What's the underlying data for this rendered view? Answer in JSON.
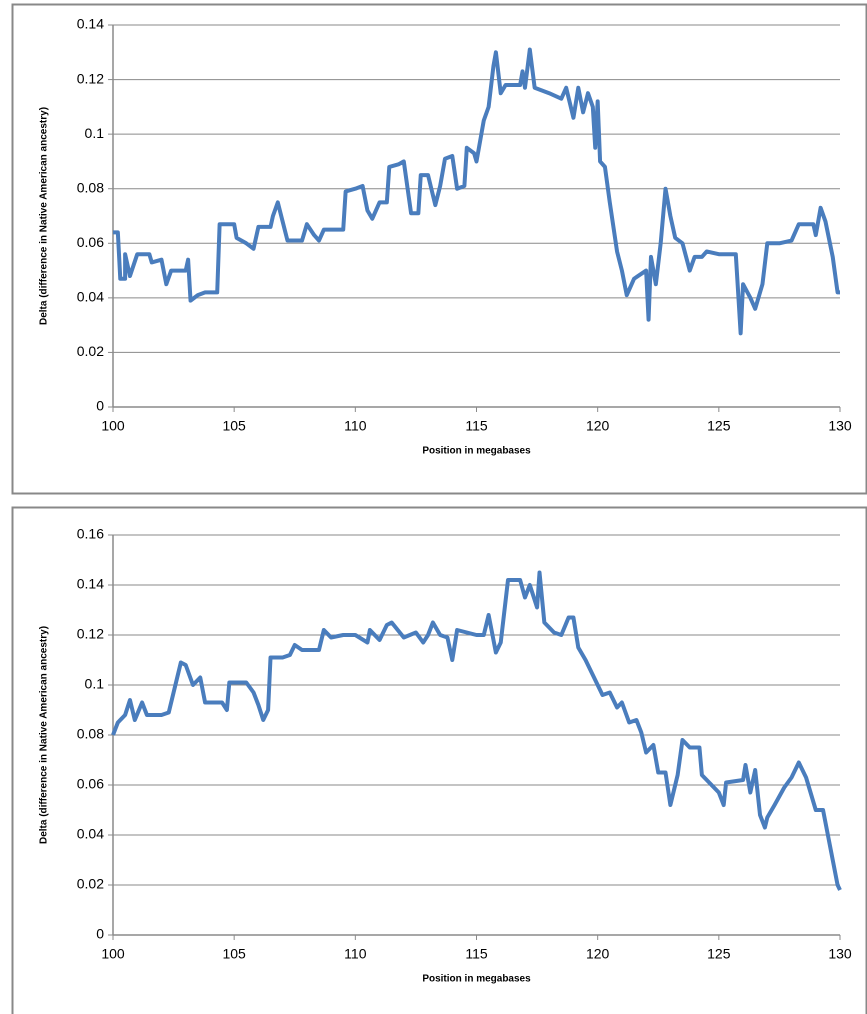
{
  "chart_data": [
    {
      "type": "line",
      "x_label": "Position in megabases",
      "y_label": "Delta (difference in Native American ancestry)",
      "xlim": [
        100,
        130
      ],
      "xticks": [
        100,
        105,
        110,
        115,
        120,
        125,
        130
      ],
      "ylim": [
        0,
        0.14
      ],
      "yticks": [
        0,
        0.02,
        0.04,
        0.06,
        0.08,
        0.1,
        0.12,
        0.14
      ],
      "grid": true,
      "x": [
        100,
        100.2,
        100.3,
        100.5,
        100.5,
        100.7,
        101,
        101.5,
        101.6,
        102,
        102.2,
        102.4,
        103,
        103.1,
        103.2,
        103.5,
        103.8,
        104.3,
        104.4,
        105,
        105.1,
        105.5,
        105.8,
        106,
        106.5,
        106.6,
        106.8,
        107,
        107.2,
        107.8,
        108,
        108.3,
        108.5,
        108.7,
        109.5,
        109.6,
        110,
        110.3,
        110.5,
        110.7,
        111,
        111.3,
        111.4,
        111.8,
        112,
        112.3,
        112.6,
        112.7,
        113,
        113.3,
        113.5,
        113.7,
        114,
        114.2,
        114.5,
        114.6,
        114.9,
        115,
        115.3,
        115.5,
        115.7,
        115.8,
        116,
        116.2,
        116.8,
        116.9,
        117,
        117.2,
        117.4,
        118,
        118.5,
        118.7,
        119,
        119.2,
        119.4,
        119.6,
        119.8,
        119.9,
        120,
        120.1,
        120.3,
        120.5,
        120.8,
        121,
        121.2,
        121.5,
        122,
        122.1,
        122.2,
        122.4,
        122.6,
        122.8,
        123,
        123.2,
        123.5,
        123.8,
        124,
        124.3,
        124.5,
        125,
        125.7,
        125.9,
        126,
        126.3,
        126.5,
        126.8,
        127,
        127.5,
        128,
        128.3,
        128.9,
        129,
        129.2,
        129.4,
        129.7,
        129.9,
        130
      ],
      "series": [
        {
          "color": "#4a7dbd",
          "values": [
            0.064,
            0.064,
            0.047,
            0.047,
            0.056,
            0.048,
            0.056,
            0.056,
            0.053,
            0.054,
            0.045,
            0.05,
            0.05,
            0.054,
            0.039,
            0.041,
            0.042,
            0.042,
            0.067,
            0.067,
            0.062,
            0.06,
            0.058,
            0.066,
            0.066,
            0.07,
            0.075,
            0.068,
            0.061,
            0.061,
            0.067,
            0.063,
            0.061,
            0.065,
            0.065,
            0.079,
            0.08,
            0.081,
            0.072,
            0.069,
            0.075,
            0.075,
            0.088,
            0.089,
            0.09,
            0.071,
            0.071,
            0.085,
            0.085,
            0.074,
            0.081,
            0.091,
            0.092,
            0.08,
            0.081,
            0.095,
            0.093,
            0.09,
            0.105,
            0.11,
            0.125,
            0.13,
            0.115,
            0.118,
            0.118,
            0.123,
            0.117,
            0.131,
            0.117,
            0.115,
            0.113,
            0.117,
            0.106,
            0.117,
            0.108,
            0.115,
            0.11,
            0.095,
            0.112,
            0.09,
            0.088,
            0.075,
            0.057,
            0.05,
            0.041,
            0.047,
            0.05,
            0.032,
            0.055,
            0.045,
            0.06,
            0.08,
            0.07,
            0.062,
            0.06,
            0.05,
            0.055,
            0.055,
            0.057,
            0.056,
            0.056,
            0.027,
            0.045,
            0.04,
            0.036,
            0.045,
            0.06,
            0.06,
            0.061,
            0.067,
            0.067,
            0.063,
            0.073,
            0.068,
            0.055,
            0.042,
            0.042
          ]
        }
      ]
    },
    {
      "type": "line",
      "x_label": "Position in megabases",
      "y_label": "Delta (difference in Native American ancestry)",
      "xlim": [
        100,
        130
      ],
      "xticks": [
        100,
        105,
        110,
        115,
        120,
        125,
        130
      ],
      "ylim": [
        0,
        0.16
      ],
      "yticks": [
        0,
        0.02,
        0.04,
        0.06,
        0.08,
        0.1,
        0.12,
        0.14,
        0.16
      ],
      "grid": true,
      "x": [
        100,
        100.2,
        100.5,
        100.7,
        100.9,
        101.2,
        101.4,
        102,
        102.3,
        102.5,
        102.8,
        103,
        103.3,
        103.6,
        103.8,
        104.5,
        104.7,
        104.8,
        105.5,
        105.8,
        106,
        106.2,
        106.4,
        106.5,
        107,
        107.3,
        107.5,
        107.8,
        108.5,
        108.7,
        109,
        109.5,
        110,
        110.5,
        110.6,
        111,
        111.3,
        111.5,
        112,
        112.5,
        112.8,
        113,
        113.2,
        113.5,
        113.8,
        114,
        114.2,
        114.6,
        115,
        115.3,
        115.5,
        115.8,
        116,
        116.3,
        116.8,
        117,
        117.2,
        117.5,
        117.6,
        117.8,
        118.2,
        118.5,
        118.8,
        119,
        119.2,
        119.5,
        119.8,
        120,
        120.2,
        120.5,
        120.8,
        121,
        121.3,
        121.6,
        121.8,
        122,
        122.3,
        122.5,
        122.8,
        123,
        123.3,
        123.5,
        123.8,
        124.2,
        124.3,
        124.7,
        125,
        125.2,
        125.3,
        126,
        126.1,
        126.3,
        126.5,
        126.7,
        126.9,
        127,
        127.3,
        127.7,
        128,
        128.3,
        128.6,
        129,
        129.3,
        129.5,
        129.7,
        129.9,
        130
      ],
      "series": [
        {
          "color": "#4a7dbd",
          "values": [
            0.08,
            0.085,
            0.088,
            0.094,
            0.086,
            0.093,
            0.088,
            0.088,
            0.089,
            0.097,
            0.109,
            0.108,
            0.1,
            0.103,
            0.093,
            0.093,
            0.09,
            0.101,
            0.101,
            0.097,
            0.092,
            0.086,
            0.09,
            0.111,
            0.111,
            0.112,
            0.116,
            0.114,
            0.114,
            0.122,
            0.119,
            0.12,
            0.12,
            0.117,
            0.122,
            0.118,
            0.124,
            0.125,
            0.119,
            0.121,
            0.117,
            0.12,
            0.125,
            0.12,
            0.119,
            0.11,
            0.122,
            0.121,
            0.12,
            0.12,
            0.128,
            0.113,
            0.117,
            0.142,
            0.142,
            0.135,
            0.14,
            0.131,
            0.145,
            0.125,
            0.121,
            0.12,
            0.127,
            0.127,
            0.115,
            0.11,
            0.104,
            0.1,
            0.096,
            0.097,
            0.091,
            0.093,
            0.085,
            0.086,
            0.081,
            0.073,
            0.076,
            0.065,
            0.065,
            0.052,
            0.064,
            0.078,
            0.075,
            0.075,
            0.064,
            0.06,
            0.057,
            0.052,
            0.061,
            0.062,
            0.068,
            0.057,
            0.066,
            0.048,
            0.043,
            0.047,
            0.052,
            0.059,
            0.063,
            0.069,
            0.063,
            0.05,
            0.05,
            0.04,
            0.03,
            0.02,
            0.018
          ]
        }
      ]
    }
  ]
}
